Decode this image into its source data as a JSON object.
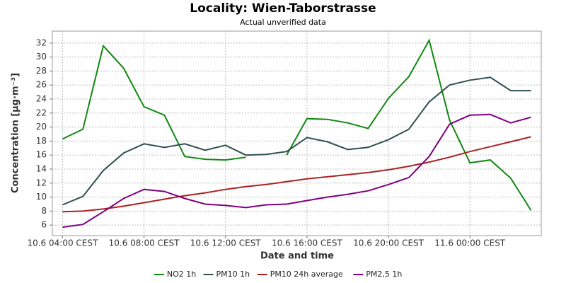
{
  "chart_data": {
    "type": "line",
    "title": "Locality: Wien-Taborstrasse",
    "subtitle": "Actual unverified data",
    "x_label": "Date and time",
    "y_label": "Concentration [µg·m⁻³]",
    "categories": [
      "10.6 04:00 CEST",
      null,
      null,
      null,
      "10.6 08:00 CEST",
      null,
      null,
      null,
      "10.6 12:00 CEST",
      null,
      null,
      null,
      "10.6 16:00 CEST",
      null,
      null,
      null,
      "10.6 20:00 CEST",
      null,
      null,
      null,
      "11.6 00:00 CEST",
      null,
      null,
      null
    ],
    "ylim": [
      4.5,
      33.7
    ],
    "yticks": [
      6,
      8,
      10,
      12,
      14,
      16,
      18,
      20,
      22,
      24,
      26,
      28,
      30,
      32
    ],
    "grid": true,
    "legend": "bottom",
    "series": [
      {
        "name": "NO2 1h",
        "color": "#118811",
        "values": [
          18.3,
          19.7,
          31.6,
          28.4,
          22.9,
          21.7,
          15.8,
          15.4,
          15.3,
          15.7,
          null,
          16.0,
          21.2,
          21.1,
          20.6,
          19.8,
          24.1,
          27.2,
          32.4,
          21.0,
          14.9,
          15.3,
          12.7,
          8.1
        ]
      },
      {
        "name": "PM10 1h",
        "color": "#2f4f4f",
        "values": [
          8.9,
          10.1,
          13.8,
          16.3,
          17.6,
          17.1,
          17.6,
          16.7,
          17.4,
          16.0,
          16.1,
          16.5,
          18.5,
          17.9,
          16.8,
          17.1,
          18.2,
          19.7,
          23.6,
          26.0,
          26.7,
          27.1,
          25.2,
          25.2
        ]
      },
      {
        "name": "PM10 24h average",
        "color": "#aa2222",
        "values": [
          7.9,
          8.0,
          8.3,
          8.7,
          9.2,
          9.7,
          10.2,
          10.6,
          11.1,
          11.5,
          11.8,
          12.2,
          12.6,
          12.9,
          13.2,
          13.5,
          13.9,
          14.4,
          15.0,
          15.7,
          16.5,
          17.2,
          17.9,
          18.6
        ]
      },
      {
        "name": "PM2,5 1h",
        "color": "#800080",
        "values": [
          5.7,
          6.1,
          7.9,
          9.8,
          11.1,
          10.8,
          9.8,
          9.0,
          8.8,
          8.5,
          8.9,
          9.0,
          9.5,
          10.0,
          10.4,
          10.9,
          11.8,
          12.8,
          15.8,
          20.4,
          21.7,
          21.8,
          20.6,
          21.4
        ]
      }
    ]
  }
}
